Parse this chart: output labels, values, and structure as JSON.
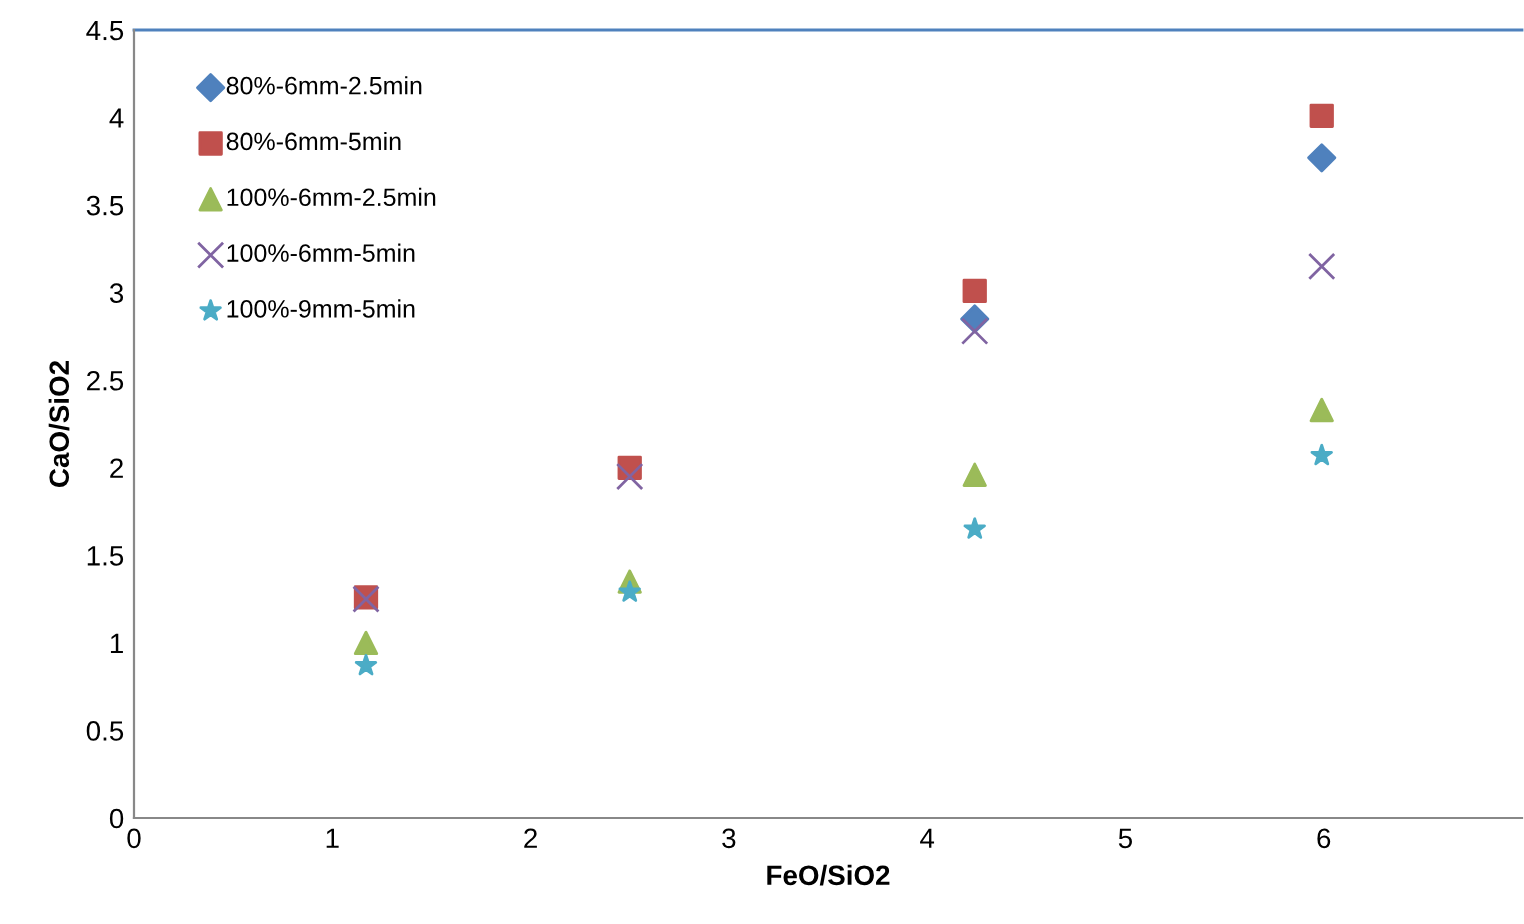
{
  "chart_data": {
    "type": "scatter",
    "xlabel": "FeO/SiO2",
    "ylabel": "CaO/SiO2",
    "x": [
      1.17,
      2.5,
      4.24,
      5.99
    ],
    "xlim": [
      0,
      7
    ],
    "xticks": [
      0,
      1,
      2,
      3,
      4,
      5,
      6
    ],
    "ylim": [
      0,
      4.5
    ],
    "yticks": [
      0,
      0.5,
      1,
      1.5,
      2,
      2.5,
      3,
      3.5,
      4,
      4.5
    ],
    "grid": false,
    "legend": "top left",
    "series": [
      {
        "name": "80%-6mm-2.5min",
        "color": "#4f81bd",
        "marker": "diamond",
        "values": [
          null,
          null,
          2.85,
          3.77
        ]
      },
      {
        "name": "80%-6mm-5min",
        "color": "#c0504d",
        "marker": "square",
        "values": [
          1.26,
          2.0,
          3.01,
          4.01
        ]
      },
      {
        "name": "100%-6mm-2.5min",
        "color": "#9bbb59",
        "marker": "triangle",
        "values": [
          1.0,
          1.35,
          1.96,
          2.33
        ]
      },
      {
        "name": "100%-6mm-5min",
        "color": "#8064a2",
        "marker": "cross",
        "values": [
          1.25,
          1.95,
          2.78,
          3.15
        ]
      },
      {
        "name": "100%-9mm-5min",
        "color": "#4bacc6",
        "marker": "star",
        "values": [
          0.87,
          1.29,
          1.65,
          2.07
        ]
      }
    ]
  }
}
